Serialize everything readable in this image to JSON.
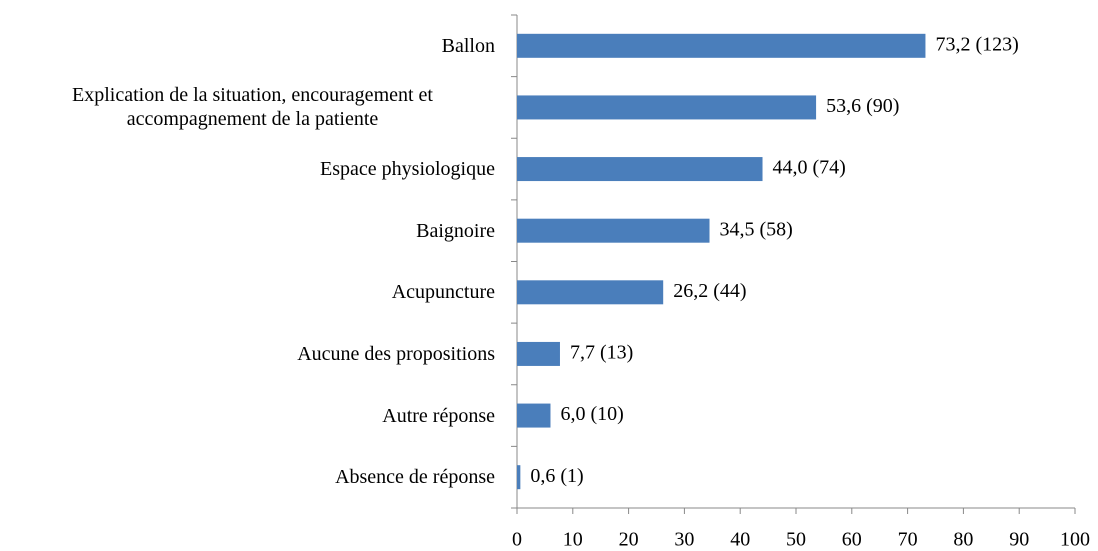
{
  "chart_data": {
    "type": "bar",
    "orientation": "horizontal",
    "categories": [
      "Ballon",
      "Explication de la situation, encouragement et accompagnement de la patiente",
      "Espace physiologique",
      "Baignoire",
      "Acupuncture",
      "Aucune des propositions",
      "Autre réponse",
      "Absence de réponse"
    ],
    "values": [
      73.2,
      53.6,
      44.0,
      34.5,
      26.2,
      7.7,
      6.0,
      0.6
    ],
    "value_labels": [
      "73,2 (123)",
      "53,6 (90)",
      "44,0 (74)",
      "34,5 (58)",
      "26,2 (44)",
      "7,7 (13)",
      "6,0 (10)",
      "0,6 (1)"
    ],
    "color": "#4a7ebb",
    "xlim": [
      0,
      100
    ],
    "xticks": [
      0,
      10,
      20,
      30,
      40,
      50,
      60,
      70,
      80,
      90,
      100
    ]
  }
}
